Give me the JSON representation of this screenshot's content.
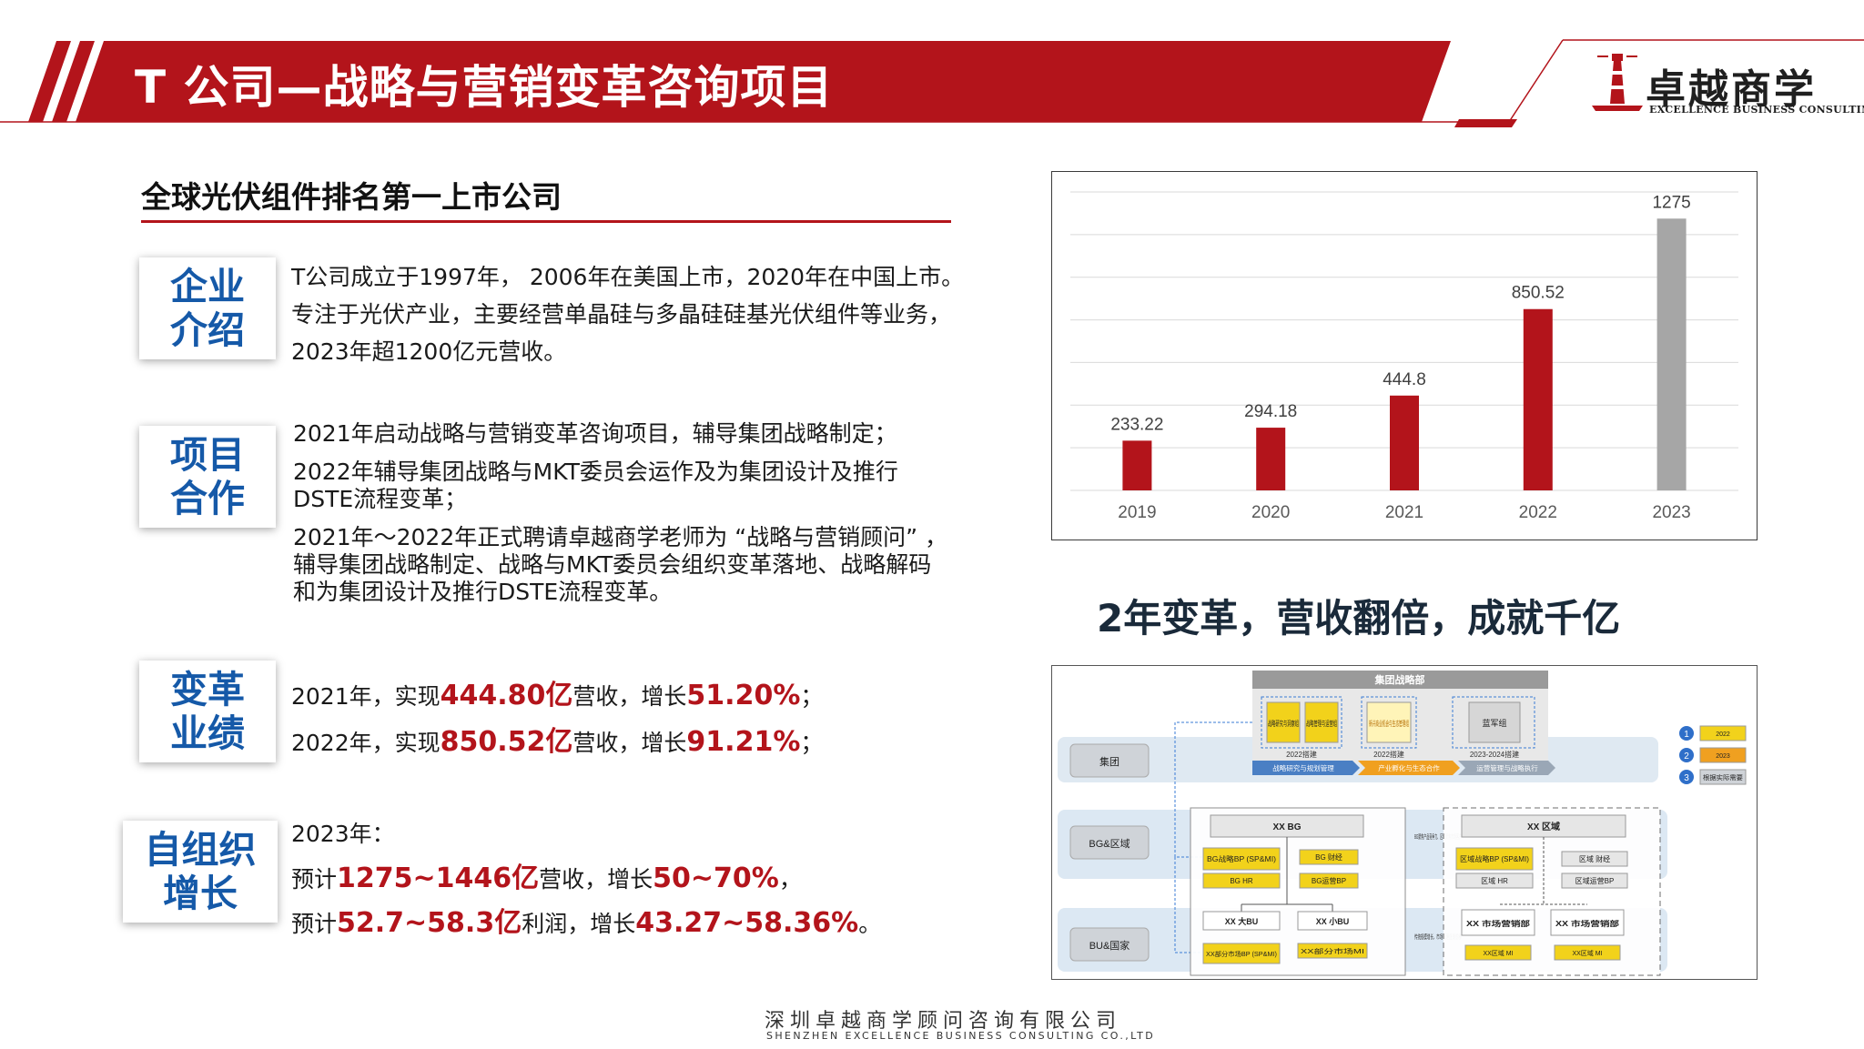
{
  "header": {
    "title": "T 公司—战略与营销变革咨询项目",
    "logo_cn": "卓越商学",
    "logo_en": "EXCELLENCE BUSINESS CONSULTING",
    "logo_icon": "lighthouse-icon",
    "brand_color": "#b3141b"
  },
  "subheading": "全球光伏组件排名第一上市公司",
  "sections": [
    {
      "label": [
        "企业",
        "介绍"
      ],
      "lines": [
        "T公司成立于1997年， 2006年在美国上市，2020年在中国上市。",
        "专注于光伏产业，主要经营单晶硅与多晶硅硅基光伏组件等业务，",
        "2023年超1200亿元营收。"
      ]
    },
    {
      "label": [
        "项目",
        "合作"
      ],
      "lines": [
        "2021年启动战略与营销变革咨询项目，辅导集团战略制定；",
        "2022年辅导集团战略与MKT委员会运作及为集团设计及推行",
        "DSTE流程变革；",
        "2021年～2022年正式聘请卓越商学老师为 “战略与营销顾问” ，",
        "辅导集团战略制定、战略与MKT委员会组织变革落地、战略解码",
        "和为集团设计及推行DSTE流程变革。"
      ]
    },
    {
      "label": [
        "变革",
        "业绩"
      ],
      "rows": [
        {
          "p1": "2021年，实现",
          "v1": "444.80亿",
          "p2": "营收，增长",
          "v2": "51.20%",
          "p3": "；"
        },
        {
          "p1": "2022年，实现",
          "v1": "850.52亿",
          "p2": "营收，增长",
          "v2": "91.21%",
          "p3": "；"
        }
      ]
    },
    {
      "label": [
        "自组织",
        "增长"
      ],
      "intro": "2023年：",
      "rows": [
        {
          "p1": "预计",
          "v1": "1275~1446亿",
          "p2": "营收，增长",
          "v2": "50~70%",
          "p3": "，"
        },
        {
          "p1": "预计",
          "v1": "52.7~58.3亿",
          "p2": "利润，增长",
          "v2": "43.27~58.36%",
          "p3": "。"
        }
      ]
    }
  ],
  "chart_data": {
    "type": "bar",
    "categories": [
      "2019",
      "2020",
      "2021",
      "2022",
      "2023"
    ],
    "values": [
      233.22,
      294.18,
      444.8,
      850.52,
      1275
    ],
    "labels": [
      "233.22",
      "294.18",
      "444.8",
      "850.52",
      "1275"
    ],
    "colors": [
      "#b3141b",
      "#b3141b",
      "#b3141b",
      "#b3141b",
      "#a6a6a6"
    ],
    "ylim": [
      0,
      1400
    ],
    "grid": true,
    "title": "",
    "xlabel": "",
    "ylabel": ""
  },
  "slogan": "2年变革，营收翻倍，成就千亿",
  "org": {
    "top_banner": "集团战略部",
    "top_boxes": [
      "战略研究与洞察组",
      "战略管理与运营组",
      "新兴商业机会与生态管理组",
      "蓝军组"
    ],
    "stage_labels": [
      "2022搭建",
      "2022搭建",
      "2023-2024搭建"
    ],
    "flow_labels": [
      "战略研究与规划管理",
      "产业孵化与生态合作",
      "运营管理与战略执行"
    ],
    "rows": [
      "集团",
      "BG&区域",
      "BU&国家"
    ],
    "bg_title": "XX BG",
    "bg_boxes": [
      "BG战略BP (SP&MI)",
      "BG 财经",
      "BG HR",
      "BG运营BP"
    ],
    "bg_note": "BG聚焦产品竞争力、区域聚焦市场客户",
    "region_title": "XX 区域",
    "region_boxes": [
      "区域战略BP (SP&MI)",
      "区域 财经",
      "区域 HR",
      "区域运营BP"
    ],
    "bu_boxes": [
      "XX 大BU",
      "XX 小BU"
    ],
    "bu_subs": [
      "XX部分市场BP (SP&MI)",
      "XX部分市场MI"
    ],
    "bu_note": "传统规模增长、市场管理逐渐前移",
    "dept_boxes": [
      "XX 市场营销部",
      "XX 市场营销部"
    ],
    "dept_subs": [
      "XX区域 MI",
      "XX区域 MI"
    ],
    "legend": [
      {
        "num": "1",
        "text": "2022"
      },
      {
        "num": "2",
        "text": "2023"
      },
      {
        "num": "3",
        "text": "根据实际需要"
      }
    ]
  },
  "footer": {
    "cn": "深圳卓越商学顾问咨询有限公司",
    "en": "SHENZHEN EXCELLENCE BUSINESS CONSULTING CO.,LTD"
  }
}
